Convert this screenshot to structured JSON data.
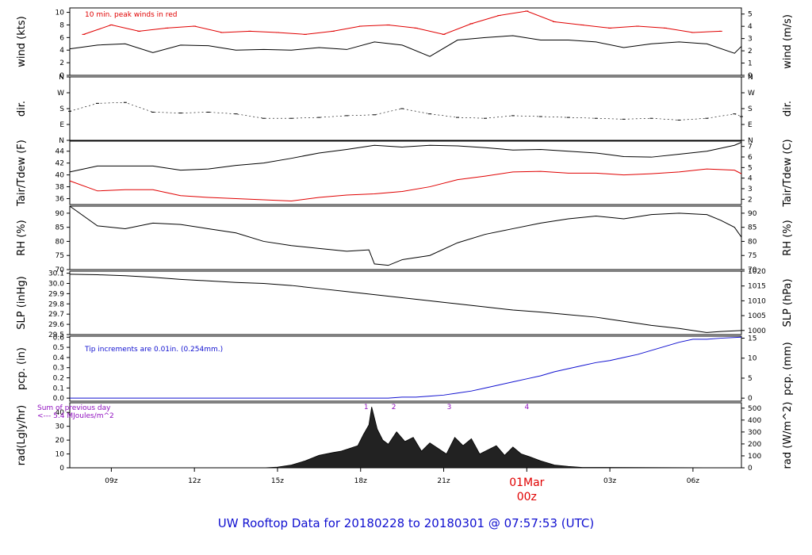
{
  "colors": {
    "axis": "#000000",
    "black_series": "#000000",
    "red_series": "#e00000",
    "blue_series": "#1010d0",
    "purple_text": "#9010c0",
    "footer": "#1010d0"
  },
  "footer": {
    "title": "UW Rooftop Data for 20180228  to  20180301 @ 07:57:53  (UTC)"
  },
  "xaxis": {
    "range": [
      7.5,
      31.75
    ],
    "ticks": [
      9,
      12,
      15,
      18,
      21,
      24,
      27,
      30
    ],
    "tick_labels": [
      "09z",
      "12z",
      "15z",
      "18z",
      "21z",
      "",
      "03z",
      "06z"
    ],
    "date_label": "01Mar",
    "date_sub": "00z",
    "date_at": 24
  },
  "panels": {
    "wind": {
      "ylabel_left": "wind (kts)",
      "ylabel_right": "wind (m/s)",
      "note": "10 min. peak winds in red",
      "left_ticks": [
        "0",
        "2",
        "4",
        "6",
        "8",
        "10"
      ],
      "right_ticks": [
        "0",
        "1",
        "2",
        "3",
        "4",
        "5"
      ]
    },
    "dir": {
      "ylabel_left": "dir.",
      "ylabel_right": "dir.",
      "left_ticks": [
        "N",
        "E",
        "S",
        "W",
        "N"
      ],
      "right_ticks": [
        "N",
        "E",
        "S",
        "W",
        "N"
      ]
    },
    "temp": {
      "ylabel_left": "Tair/Tdew (F)",
      "ylabel_right": "Tair/Tdew (C)",
      "left_ticks": [
        "36",
        "38",
        "40",
        "42",
        "44"
      ],
      "right_ticks": [
        "2",
        "3",
        "4",
        "5",
        "6",
        "7"
      ]
    },
    "rh": {
      "ylabel_left": "RH (%)",
      "ylabel_right": "RH (%)",
      "left_ticks": [
        "70",
        "75",
        "80",
        "85",
        "90"
      ],
      "right_ticks": [
        "70",
        "75",
        "80",
        "85",
        "90"
      ]
    },
    "slp": {
      "ylabel_left": "SLP (inHg)",
      "ylabel_right": "SLP (hPa)",
      "left_ticks": [
        "29.5",
        "29.6",
        "29.7",
        "29.8",
        "29.9",
        "30.0",
        "30.1"
      ],
      "right_ticks": [
        "1000",
        "1005",
        "1010",
        "1015",
        "1020"
      ]
    },
    "pcp": {
      "ylabel_left": "pcp. (in)",
      "ylabel_right": "pcp. (mm)",
      "note": "Tip increments are 0.01in. (0.254mm.)",
      "left_ticks": [
        "0.0",
        "0.1",
        "0.2",
        "0.3",
        "0.4",
        "0.5",
        "0.6"
      ],
      "right_ticks": [
        "0",
        "5",
        "10",
        "15"
      ]
    },
    "rad": {
      "ylabel_left": "rad(Lgly/hr)",
      "ylabel_right": "rad (W/m^2)",
      "note1": "Sum of previous day",
      "note2": "<--- 5.4 MJoules/m^2",
      "left_ticks": [
        "0",
        "10",
        "20",
        "30",
        "40"
      ],
      "right_ticks": [
        "0",
        "100",
        "200",
        "300",
        "400",
        "500"
      ],
      "markers": [
        "1",
        "2",
        "3",
        "4"
      ]
    }
  },
  "chart_data": [
    {
      "panel": "wind",
      "type": "line",
      "ylim": [
        0,
        10.7
      ],
      "y2lim": [
        0,
        5.5
      ],
      "series": [
        {
          "color": "#000000",
          "x": [
            7.5,
            8.5,
            9.5,
            10.5,
            11.5,
            12.5,
            13.5,
            14.5,
            15.5,
            16.5,
            17.5,
            18.5,
            19.5,
            20.5,
            21.5,
            22.5,
            23.5,
            24.5,
            25.5,
            26.5,
            27.5,
            28.5,
            29.5,
            30.5,
            31.5,
            31.75
          ],
          "y": [
            4.2,
            4.8,
            5.0,
            3.6,
            4.8,
            4.7,
            4.0,
            4.1,
            4.0,
            4.4,
            4.1,
            5.3,
            4.8,
            3.0,
            5.6,
            6.0,
            6.3,
            5.6,
            5.6,
            5.3,
            4.4,
            5.0,
            5.3,
            5.0,
            3.5,
            4.6
          ]
        },
        {
          "color": "#e00000",
          "x": [
            8,
            9,
            10,
            11,
            12,
            13,
            14,
            15,
            16,
            17,
            18,
            19,
            20,
            21,
            22,
            23,
            24,
            25,
            26,
            27,
            28,
            29,
            30,
            31
          ],
          "y": [
            6.5,
            8.0,
            7.0,
            7.5,
            7.8,
            6.8,
            7.0,
            6.8,
            6.5,
            7.0,
            7.8,
            8.0,
            7.5,
            6.5,
            8.2,
            9.5,
            10.2,
            8.5,
            8.0,
            7.5,
            7.8,
            7.5,
            6.8,
            7.0
          ]
        }
      ]
    },
    {
      "panel": "dir",
      "type": "scatter",
      "ylim": [
        0,
        360
      ],
      "series": [
        {
          "color": "#000000",
          "x": [
            7.5,
            8.5,
            9.5,
            10.5,
            11.5,
            12.5,
            13.5,
            14.5,
            15.5,
            16.5,
            17.5,
            18.5,
            19.5,
            20.5,
            21.5,
            22.5,
            23.5,
            24.5,
            25.5,
            26.5,
            27.5,
            28.5,
            29.5,
            30.5,
            31.5,
            31.75
          ],
          "y": [
            165,
            210,
            215,
            160,
            155,
            160,
            150,
            125,
            125,
            130,
            140,
            145,
            180,
            150,
            130,
            125,
            140,
            135,
            130,
            125,
            120,
            125,
            115,
            125,
            150,
            135
          ]
        }
      ]
    },
    {
      "panel": "temp",
      "type": "line",
      "ylim": [
        35,
        45.7
      ],
      "y2lim": [
        1.5,
        7.5
      ],
      "series": [
        {
          "color": "#000000",
          "x": [
            7.5,
            8.5,
            9.5,
            10.5,
            11.5,
            12.5,
            13.5,
            14.5,
            15.5,
            16.5,
            17.5,
            18.5,
            19.5,
            20.5,
            21.5,
            22.5,
            23.5,
            24.5,
            25.5,
            26.5,
            27.5,
            28.5,
            29.5,
            30.5,
            31.5,
            31.75
          ],
          "y": [
            40.5,
            41.5,
            41.5,
            41.5,
            40.8,
            41.0,
            41.6,
            42.0,
            42.8,
            43.7,
            44.3,
            45.0,
            44.7,
            45.0,
            44.9,
            44.6,
            44.2,
            44.3,
            44.0,
            43.7,
            43.1,
            43.0,
            43.5,
            44.0,
            45.0,
            45.5
          ]
        },
        {
          "color": "#e00000",
          "x": [
            7.5,
            8.5,
            9.5,
            10.5,
            11.5,
            12.5,
            13.5,
            14.5,
            15.5,
            16.5,
            17.5,
            18.5,
            19.5,
            20.5,
            21.5,
            22.5,
            23.5,
            24.5,
            25.5,
            26.5,
            27.5,
            28.5,
            29.5,
            30.5,
            31.5,
            31.75
          ],
          "y": [
            39.0,
            37.3,
            37.5,
            37.5,
            36.5,
            36.2,
            36.0,
            35.8,
            35.6,
            36.2,
            36.6,
            36.8,
            37.2,
            38.0,
            39.2,
            39.8,
            40.5,
            40.6,
            40.3,
            40.3,
            40.0,
            40.2,
            40.5,
            41.0,
            40.8,
            40.2
          ]
        }
      ]
    },
    {
      "panel": "rh",
      "type": "line",
      "ylim": [
        70,
        92.5
      ],
      "series": [
        {
          "color": "#000000",
          "x": [
            7.5,
            8.5,
            9.5,
            10.5,
            11.5,
            12.5,
            13.5,
            14.5,
            15.5,
            16.5,
            17.5,
            18.3,
            18.5,
            19.0,
            19.5,
            20.5,
            21.5,
            22.5,
            23.5,
            24.5,
            25.5,
            26.5,
            27.5,
            28.5,
            29.5,
            30.5,
            31.0,
            31.5,
            31.75
          ],
          "y": [
            92.5,
            85.5,
            84.5,
            86.5,
            86.0,
            84.5,
            83.0,
            80.0,
            78.5,
            77.5,
            76.5,
            77.0,
            72.0,
            71.5,
            73.5,
            75.0,
            79.5,
            82.5,
            84.5,
            86.5,
            88.0,
            89.0,
            88.0,
            89.5,
            90.0,
            89.5,
            87.5,
            85.0,
            81.5
          ]
        }
      ]
    },
    {
      "panel": "slp",
      "type": "line",
      "ylim": [
        29.5,
        30.12
      ],
      "y2lim": [
        998.6,
        1020
      ],
      "series": [
        {
          "color": "#000000",
          "x": [
            7.5,
            8.5,
            9.5,
            10.5,
            11.5,
            12.5,
            13.5,
            14.5,
            15.5,
            16.5,
            17.5,
            18.5,
            19.5,
            20.5,
            21.5,
            22.5,
            23.5,
            24.5,
            25.5,
            26.5,
            27.5,
            28.5,
            29.5,
            30.5,
            31.0,
            31.75
          ],
          "y": [
            30.09,
            30.085,
            30.075,
            30.06,
            30.04,
            30.025,
            30.01,
            30.0,
            29.98,
            29.95,
            29.92,
            29.89,
            29.86,
            29.83,
            29.8,
            29.77,
            29.74,
            29.72,
            29.695,
            29.67,
            29.63,
            29.59,
            29.56,
            29.52,
            29.53,
            29.54
          ]
        }
      ]
    },
    {
      "panel": "pcp",
      "type": "line",
      "ylim": [
        -0.03,
        0.61
      ],
      "y2lim": [
        -0.76,
        15.5
      ],
      "series": [
        {
          "color": "#1010d0",
          "x": [
            7.5,
            19.0,
            19.5,
            20.0,
            20.5,
            21.0,
            21.5,
            22.0,
            22.5,
            23.0,
            23.5,
            24.0,
            24.5,
            25.0,
            25.5,
            26.0,
            26.5,
            27.0,
            27.5,
            28.0,
            28.5,
            29.0,
            29.5,
            30.0,
            30.5,
            31.0,
            31.75
          ],
          "y": [
            0.0,
            0.0,
            0.01,
            0.01,
            0.02,
            0.03,
            0.05,
            0.07,
            0.1,
            0.13,
            0.16,
            0.19,
            0.22,
            0.26,
            0.29,
            0.32,
            0.35,
            0.37,
            0.4,
            0.43,
            0.47,
            0.51,
            0.55,
            0.58,
            0.58,
            0.59,
            0.6
          ]
        }
      ]
    },
    {
      "panel": "rad",
      "type": "area",
      "ylim": [
        0,
        47
      ],
      "y2lim": [
        0,
        545
      ],
      "series": [
        {
          "color": "#000000",
          "x": [
            7.5,
            14.5,
            15.0,
            15.5,
            16.0,
            16.5,
            17.0,
            17.3,
            17.6,
            17.9,
            18.1,
            18.3,
            18.4,
            18.6,
            18.8,
            19.0,
            19.3,
            19.6,
            19.9,
            20.2,
            20.5,
            20.8,
            21.1,
            21.4,
            21.7,
            22.0,
            22.3,
            22.6,
            22.9,
            23.2,
            23.5,
            23.8,
            24.1,
            24.5,
            25.0,
            25.5,
            26.0,
            31.75
          ],
          "y": [
            0,
            0,
            0.5,
            2,
            5,
            9,
            11,
            12,
            14,
            16,
            24,
            31,
            44,
            28,
            20,
            17,
            26,
            19,
            22,
            12,
            18,
            14,
            10,
            22,
            16,
            21,
            10,
            13,
            16,
            9,
            15,
            10,
            8,
            5,
            2,
            1,
            0.3,
            0
          ]
        }
      ],
      "markers": [
        {
          "label": "1",
          "x": 18.2
        },
        {
          "label": "2",
          "x": 19.2
        },
        {
          "label": "3",
          "x": 21.2
        },
        {
          "label": "4",
          "x": 24.0
        }
      ]
    }
  ]
}
